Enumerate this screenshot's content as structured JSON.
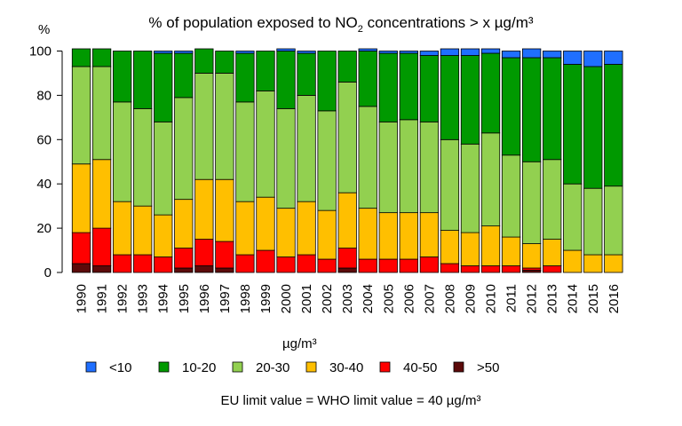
{
  "chart_data": {
    "type": "bar",
    "stacked": true,
    "title_main": "% of population exposed to NO",
    "title_sub": "2",
    "title_rest": " concentrations > x µg/m³",
    "ylabel": "%",
    "ylim": [
      0,
      100
    ],
    "yticks": [
      "0",
      "20",
      "40",
      "60",
      "80",
      "100"
    ],
    "categories": [
      "1990",
      "1991",
      "1992",
      "1993",
      "1994",
      "1995",
      "1996",
      "1997",
      "1998",
      "1999",
      "2000",
      "2001",
      "2002",
      "2003",
      "2004",
      "2005",
      "2006",
      "2007",
      "2008",
      "2009",
      "2010",
      "2011",
      "2012",
      "2013",
      "2014",
      "2015",
      "2016"
    ],
    "legend_title": "µg/m³",
    "series": [
      {
        "name": ">50",
        "color": "#5c0a0a",
        "values": [
          4,
          3,
          0,
          0,
          0,
          2,
          3,
          2,
          0,
          0,
          0,
          0,
          0,
          2,
          0,
          0,
          0,
          0,
          0,
          0,
          0,
          0,
          1,
          0,
          0,
          0,
          0
        ]
      },
      {
        "name": "40-50",
        "color": "#ff0000",
        "values": [
          14,
          17,
          8,
          8,
          7,
          9,
          12,
          12,
          8,
          10,
          7,
          8,
          6,
          9,
          6,
          6,
          6,
          7,
          4,
          3,
          3,
          3,
          1,
          3,
          0,
          0,
          0
        ]
      },
      {
        "name": "30-40",
        "color": "#ffbf00",
        "values": [
          31,
          31,
          24,
          22,
          19,
          22,
          27,
          28,
          24,
          24,
          22,
          24,
          22,
          25,
          23,
          21,
          21,
          20,
          15,
          15,
          18,
          13,
          11,
          12,
          10,
          8,
          8
        ]
      },
      {
        "name": "20-30",
        "color": "#92d050",
        "values": [
          44,
          42,
          45,
          44,
          42,
          46,
          48,
          48,
          45,
          48,
          45,
          48,
          45,
          50,
          46,
          41,
          42,
          41,
          41,
          40,
          42,
          37,
          37,
          36,
          30,
          30,
          31
        ]
      },
      {
        "name": "10-20",
        "color": "#009900",
        "values": [
          8,
          8,
          23,
          26,
          31,
          20,
          11,
          10,
          22,
          18,
          26,
          19,
          27,
          14,
          25,
          31,
          30,
          30,
          38,
          40,
          36,
          44,
          47,
          46,
          54,
          55,
          55
        ]
      },
      {
        "name": "<10",
        "color": "#1f6fff",
        "values": [
          0,
          0,
          0,
          0,
          1,
          1,
          0,
          0,
          1,
          0,
          1,
          1,
          0,
          0,
          1,
          1,
          1,
          2,
          3,
          3,
          2,
          3,
          4,
          3,
          6,
          7,
          6
        ]
      }
    ],
    "footnote": "EU limit value = WHO limit value = 40 µg/m³"
  }
}
